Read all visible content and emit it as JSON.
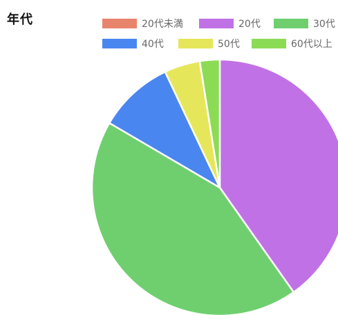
{
  "chart_data": {
    "type": "pie",
    "title": "年代",
    "legend_position": "top",
    "categories": [
      "20代未満",
      "20代",
      "30代",
      "40代",
      "50代",
      "60代以上"
    ],
    "values": [
      0,
      40,
      43,
      9.5,
      4.5,
      2.5
    ],
    "colors": [
      "#e8836c",
      "#c171e6",
      "#6fcf6f",
      "#4a86f0",
      "#e6e65a",
      "#8cdb55"
    ],
    "start_angle_deg": 0,
    "direction": "clockwise"
  }
}
